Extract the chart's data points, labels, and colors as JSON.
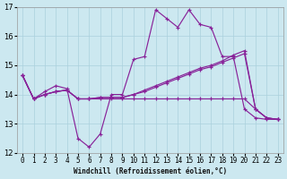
{
  "xlabel": "Windchill (Refroidissement éolien,°C)",
  "background_color": "#cce8f0",
  "grid_color": "#aad0dd",
  "line_color": "#882299",
  "xlim_min": -0.5,
  "xlim_max": 23.5,
  "ylim_min": 12,
  "ylim_max": 17,
  "yticks": [
    12,
    13,
    14,
    15,
    16,
    17
  ],
  "xticks": [
    0,
    1,
    2,
    3,
    4,
    5,
    6,
    7,
    8,
    9,
    10,
    11,
    12,
    13,
    14,
    15,
    16,
    17,
    18,
    19,
    20,
    21,
    22,
    23
  ],
  "hours": [
    0,
    1,
    2,
    3,
    4,
    5,
    6,
    7,
    8,
    9,
    10,
    11,
    12,
    13,
    14,
    15,
    16,
    17,
    18,
    19,
    20,
    21,
    22,
    23
  ],
  "s1": [
    14.65,
    13.85,
    14.1,
    14.3,
    14.2,
    12.5,
    12.2,
    12.65,
    14.0,
    14.0,
    15.2,
    15.3,
    16.9,
    16.6,
    16.3,
    16.9,
    16.4,
    16.3,
    15.3,
    15.3,
    13.5,
    13.2,
    13.15,
    13.15
  ],
  "s2": [
    14.65,
    13.85,
    14.0,
    14.1,
    14.15,
    13.85,
    13.85,
    13.9,
    13.9,
    13.9,
    14.0,
    14.15,
    14.3,
    14.45,
    14.6,
    14.75,
    14.9,
    15.0,
    15.15,
    15.35,
    15.5,
    13.5,
    13.2,
    13.15
  ],
  "s3": [
    14.65,
    13.85,
    14.0,
    14.1,
    14.15,
    13.85,
    13.85,
    13.9,
    13.9,
    13.9,
    14.0,
    14.1,
    14.25,
    14.4,
    14.55,
    14.7,
    14.85,
    14.95,
    15.1,
    15.25,
    15.4,
    13.5,
    13.2,
    13.15
  ],
  "s4": [
    14.65,
    13.85,
    14.0,
    14.1,
    14.15,
    13.85,
    13.85,
    13.85,
    13.85,
    13.85,
    13.85,
    13.85,
    13.85,
    13.85,
    13.85,
    13.85,
    13.85,
    13.85,
    13.85,
    13.85,
    13.85,
    13.5,
    13.2,
    13.15
  ]
}
